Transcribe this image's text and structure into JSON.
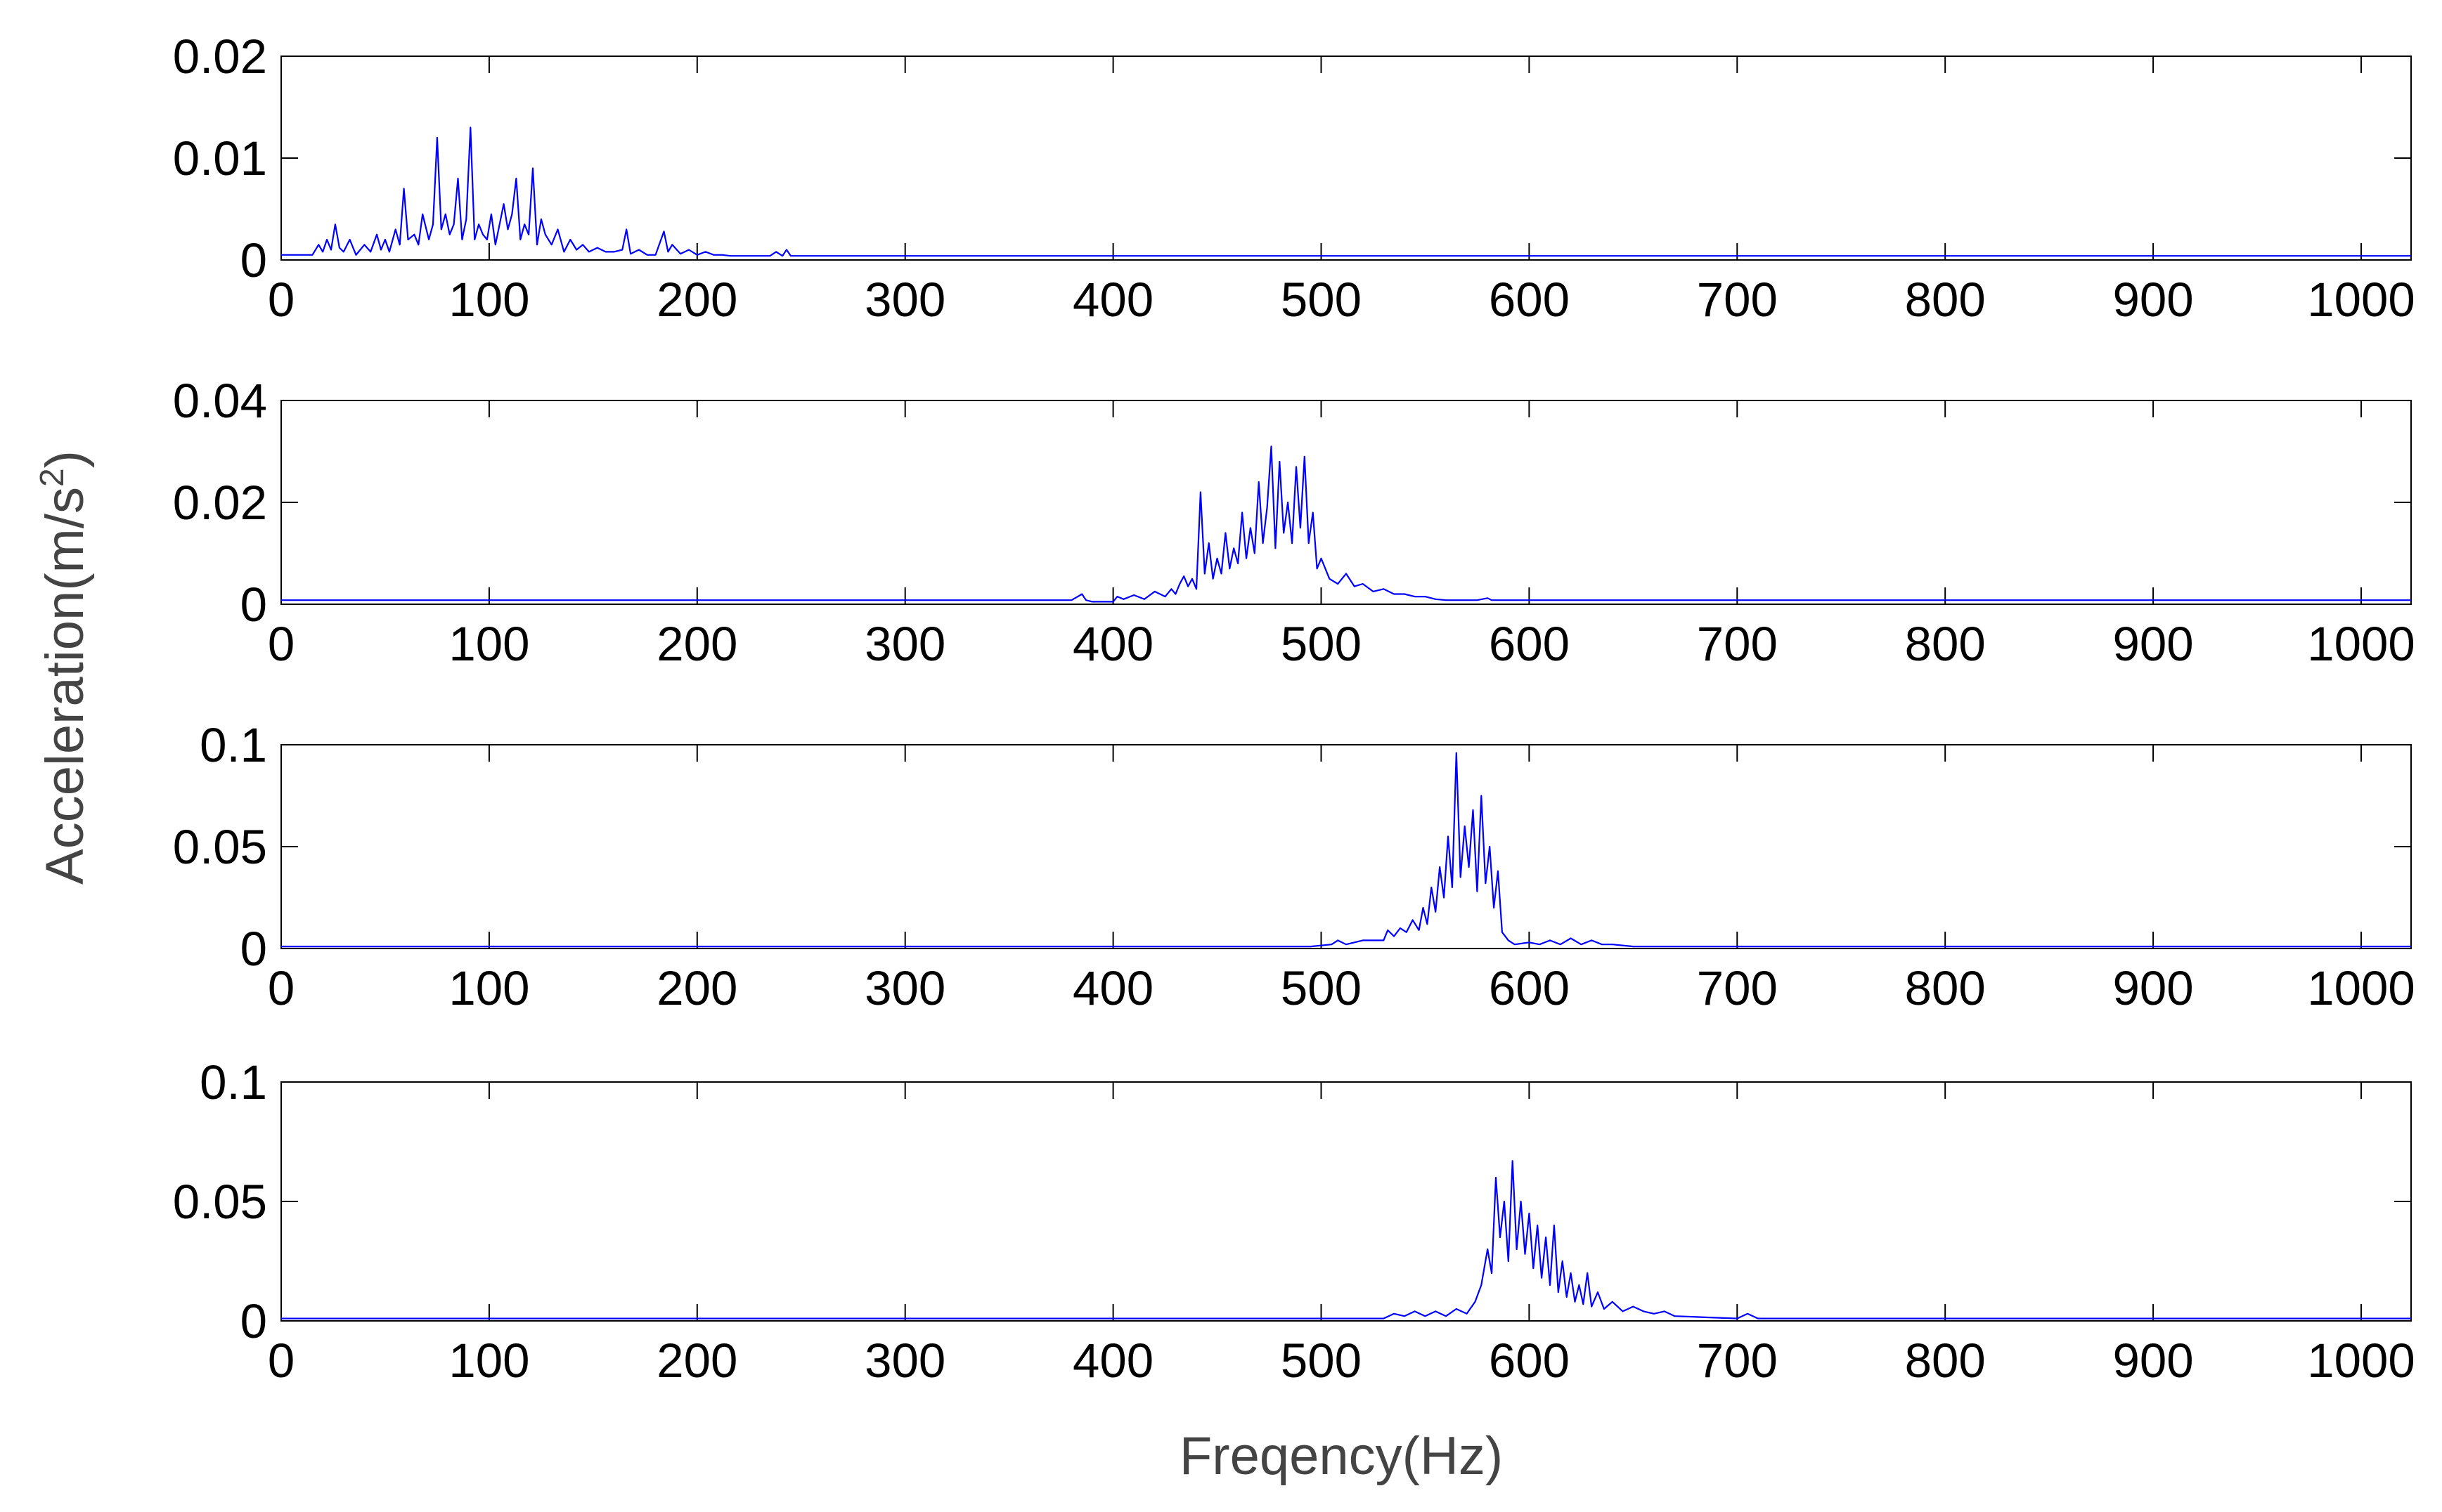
{
  "figure": {
    "xlabel": "Freqency(Hz)",
    "ylabel_main": "Acceleration(m/s",
    "ylabel_sup": "2",
    "ylabel_close": ")"
  },
  "colors": {
    "line": "#0000ff",
    "axes": "#000000",
    "background": "#ffffff",
    "axis_title": "#444444"
  },
  "chart_data": [
    {
      "type": "line",
      "title": "",
      "xlabel": "",
      "ylabel": "",
      "xlim": [
        0,
        1024
      ],
      "ylim": [
        0,
        0.02
      ],
      "xticks": [
        0,
        100,
        200,
        300,
        400,
        500,
        600,
        700,
        800,
        900,
        1000
      ],
      "xtick_labels": [
        "0",
        "100",
        "200",
        "300",
        "400",
        "500",
        "600",
        "700",
        "800",
        "900",
        "1000"
      ],
      "yticks": [
        0,
        0.01,
        0.02
      ],
      "ytick_labels": [
        "0",
        "0.01",
        "0.02"
      ],
      "grid": false,
      "series": [
        {
          "x": [
            0,
            15,
            18,
            20,
            22,
            24,
            26,
            28,
            30,
            33,
            36,
            40,
            43,
            46,
            48,
            50,
            52,
            55,
            57,
            59,
            61,
            64,
            66,
            68,
            71,
            73,
            75,
            77,
            79,
            81,
            83,
            85,
            87,
            89,
            91,
            93,
            95,
            97,
            99,
            101,
            103,
            105,
            107,
            109,
            111,
            113,
            115,
            117,
            119,
            121,
            123,
            125,
            127,
            130,
            133,
            136,
            139,
            142,
            145,
            148,
            152,
            156,
            160,
            164,
            166,
            168,
            172,
            176,
            180,
            184,
            186,
            188,
            192,
            196,
            200,
            204,
            208,
            212,
            216,
            220,
            225,
            230,
            235,
            238,
            241,
            243,
            245,
            250,
            260,
            1024
          ],
          "y": [
            0.0005,
            0.0005,
            0.0015,
            0.0008,
            0.002,
            0.001,
            0.0035,
            0.0012,
            0.0008,
            0.002,
            0.0005,
            0.0015,
            0.0008,
            0.0025,
            0.001,
            0.002,
            0.0008,
            0.003,
            0.0015,
            0.007,
            0.002,
            0.0025,
            0.0015,
            0.0045,
            0.002,
            0.0035,
            0.012,
            0.003,
            0.0045,
            0.0025,
            0.0035,
            0.008,
            0.002,
            0.004,
            0.013,
            0.002,
            0.0035,
            0.0025,
            0.002,
            0.0045,
            0.0015,
            0.0035,
            0.0055,
            0.003,
            0.0045,
            0.008,
            0.002,
            0.0035,
            0.0025,
            0.009,
            0.0015,
            0.004,
            0.0025,
            0.0015,
            0.003,
            0.0008,
            0.002,
            0.001,
            0.0015,
            0.0008,
            0.0012,
            0.0008,
            0.0008,
            0.001,
            0.003,
            0.0006,
            0.001,
            0.0005,
            0.0005,
            0.0028,
            0.0008,
            0.0015,
            0.0006,
            0.001,
            0.0005,
            0.0008,
            0.0005,
            0.0005,
            0.0004,
            0.0004,
            0.0004,
            0.0004,
            0.0004,
            0.0008,
            0.0004,
            0.001,
            0.0004,
            0.0004,
            0.0004,
            0.0004
          ]
        }
      ]
    },
    {
      "type": "line",
      "title": "",
      "xlabel": "",
      "ylabel": "",
      "xlim": [
        0,
        1024
      ],
      "ylim": [
        0,
        0.04
      ],
      "xticks": [
        0,
        100,
        200,
        300,
        400,
        500,
        600,
        700,
        800,
        900,
        1000
      ],
      "xtick_labels": [
        "0",
        "100",
        "200",
        "300",
        "400",
        "500",
        "600",
        "700",
        "800",
        "900",
        "1000"
      ],
      "yticks": [
        0,
        0.02,
        0.04
      ],
      "ytick_labels": [
        "0",
        "0.02",
        "0.04"
      ],
      "grid": false,
      "series": [
        {
          "x": [
            0,
            380,
            383,
            385,
            387,
            390,
            400,
            402,
            405,
            410,
            415,
            420,
            425,
            428,
            430,
            432,
            434,
            436,
            438,
            440,
            442,
            444,
            446,
            448,
            450,
            452,
            454,
            456,
            458,
            460,
            462,
            464,
            466,
            468,
            470,
            472,
            474,
            476,
            478,
            480,
            482,
            484,
            486,
            488,
            490,
            492,
            494,
            496,
            498,
            500,
            504,
            508,
            512,
            516,
            520,
            525,
            530,
            535,
            540,
            545,
            550,
            555,
            560,
            575,
            580,
            582,
            584,
            590,
            1024
          ],
          "y": [
            0.0008,
            0.0008,
            0.0015,
            0.002,
            0.0008,
            0.0005,
            0.0005,
            0.0015,
            0.001,
            0.0018,
            0.001,
            0.0025,
            0.0015,
            0.003,
            0.002,
            0.004,
            0.0055,
            0.0035,
            0.005,
            0.003,
            0.022,
            0.006,
            0.012,
            0.005,
            0.009,
            0.006,
            0.014,
            0.007,
            0.011,
            0.008,
            0.018,
            0.009,
            0.015,
            0.01,
            0.024,
            0.012,
            0.019,
            0.031,
            0.011,
            0.028,
            0.014,
            0.02,
            0.012,
            0.027,
            0.015,
            0.029,
            0.012,
            0.018,
            0.007,
            0.009,
            0.005,
            0.004,
            0.006,
            0.0035,
            0.004,
            0.0025,
            0.003,
            0.002,
            0.002,
            0.0015,
            0.0015,
            0.001,
            0.0008,
            0.0008,
            0.0012,
            0.0008,
            0.0008,
            0.0008,
            0.0008
          ]
        }
      ]
    },
    {
      "type": "line",
      "title": "",
      "xlabel": "",
      "ylabel": "",
      "xlim": [
        0,
        1024
      ],
      "ylim": [
        0,
        0.1
      ],
      "xticks": [
        0,
        100,
        200,
        300,
        400,
        500,
        600,
        700,
        800,
        900,
        1000
      ],
      "xtick_labels": [
        "0",
        "100",
        "200",
        "300",
        "400",
        "500",
        "600",
        "700",
        "800",
        "900",
        "1000"
      ],
      "yticks": [
        0,
        0.05,
        0.1
      ],
      "ytick_labels": [
        "0",
        "0.05",
        "0.1"
      ],
      "grid": false,
      "series": [
        {
          "x": [
            0,
            495,
            505,
            508,
            512,
            520,
            530,
            532,
            535,
            538,
            541,
            544,
            547,
            549,
            551,
            553,
            555,
            557,
            559,
            561,
            563,
            565,
            567,
            569,
            571,
            573,
            575,
            577,
            579,
            581,
            583,
            585,
            587,
            590,
            593,
            600,
            605,
            610,
            615,
            620,
            625,
            630,
            635,
            640,
            650,
            1024
          ],
          "y": [
            0.001,
            0.001,
            0.002,
            0.004,
            0.002,
            0.004,
            0.004,
            0.009,
            0.006,
            0.01,
            0.008,
            0.014,
            0.009,
            0.02,
            0.012,
            0.03,
            0.018,
            0.04,
            0.025,
            0.055,
            0.03,
            0.096,
            0.035,
            0.06,
            0.04,
            0.068,
            0.028,
            0.075,
            0.032,
            0.05,
            0.02,
            0.038,
            0.008,
            0.004,
            0.002,
            0.003,
            0.002,
            0.004,
            0.002,
            0.005,
            0.002,
            0.004,
            0.002,
            0.002,
            0.001,
            0.001
          ]
        }
      ]
    },
    {
      "type": "line",
      "title": "",
      "xlabel": "",
      "ylabel": "",
      "xlim": [
        0,
        1024
      ],
      "ylim": [
        0,
        0.1
      ],
      "xticks": [
        0,
        100,
        200,
        300,
        400,
        500,
        600,
        700,
        800,
        900,
        1000
      ],
      "xtick_labels": [
        "0",
        "100",
        "200",
        "300",
        "400",
        "500",
        "600",
        "700",
        "800",
        "900",
        "1000"
      ],
      "yticks": [
        0,
        0.05,
        0.1
      ],
      "ytick_labels": [
        "0",
        "0.05",
        "0.1"
      ],
      "grid": false,
      "series": [
        {
          "x": [
            0,
            530,
            535,
            540,
            545,
            550,
            555,
            560,
            565,
            570,
            574,
            577,
            580,
            582,
            584,
            586,
            588,
            590,
            592,
            594,
            596,
            598,
            600,
            602,
            604,
            606,
            608,
            610,
            612,
            614,
            616,
            618,
            620,
            622,
            624,
            626,
            628,
            630,
            633,
            636,
            640,
            645,
            650,
            655,
            660,
            665,
            670,
            700,
            705,
            710,
            1024
          ],
          "y": [
            0.001,
            0.001,
            0.003,
            0.002,
            0.004,
            0.002,
            0.004,
            0.002,
            0.005,
            0.003,
            0.008,
            0.015,
            0.03,
            0.02,
            0.06,
            0.035,
            0.05,
            0.025,
            0.067,
            0.03,
            0.05,
            0.028,
            0.045,
            0.022,
            0.04,
            0.018,
            0.035,
            0.015,
            0.04,
            0.012,
            0.025,
            0.01,
            0.02,
            0.008,
            0.015,
            0.007,
            0.02,
            0.006,
            0.012,
            0.005,
            0.008,
            0.004,
            0.006,
            0.004,
            0.003,
            0.004,
            0.002,
            0.001,
            0.003,
            0.001,
            0.001
          ]
        }
      ]
    }
  ]
}
